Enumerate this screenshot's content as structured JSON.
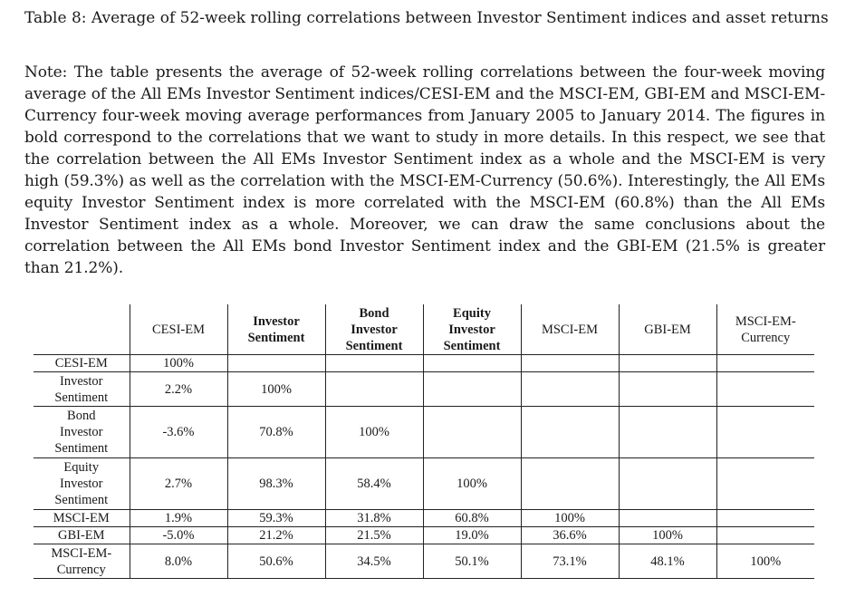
{
  "caption": "Table 8: Average of 52-week rolling correlations between Investor Sentiment indices and asset returns",
  "note": "Note: The table presents the average of 52-week rolling correlations between the four-week moving average of the All EMs Investor Sentiment indices/CESI-EM and the MSCI-EM, GBI-EM and MSCI-EM-Currency four-week moving average performances from January 2005 to January 2014. The figures in bold correspond to the correlations that we want to study in more details. In this respect, we see that the correlation between the All EMs Investor Sentiment index as a whole and the MSCI-EM is very high (59.3%) as well as the correlation with the MSCI-EM-Currency (50.6%). Interestingly, the All EMs equity Investor Sentiment index is more correlated with the MSCI-EM (60.8%) than the All EMs Investor Sentiment index as a whole. Moreover, we can draw the same conclusions about the correlation between the All EMs bond Investor Sentiment index and the GBI-EM (21.5% is greater than 21.2%).",
  "table": {
    "headers": [
      {
        "line1": "CESI-EM",
        "line2": "",
        "line3": ""
      },
      {
        "line1": "Investor",
        "line2": "Sentiment",
        "line3": ""
      },
      {
        "line1": "Bond",
        "line2": "Investor",
        "line3": "Sentiment"
      },
      {
        "line1": "Equity",
        "line2": "Investor",
        "line3": "Sentiment"
      },
      {
        "line1": "MSCI-EM",
        "line2": "",
        "line3": ""
      },
      {
        "line1": "GBI-EM",
        "line2": "",
        "line3": ""
      },
      {
        "line1": "MSCI-EM-",
        "line2": "Currency",
        "line3": ""
      }
    ],
    "rows": [
      {
        "label1": "CESI-EM",
        "label2": "",
        "label3": "",
        "cells": [
          "100%",
          "",
          "",
          "",
          "",
          "",
          ""
        ]
      },
      {
        "label1": "Investor",
        "label2": "Sentiment",
        "label3": "",
        "cells": [
          "2.2%",
          "100%",
          "",
          "",
          "",
          "",
          ""
        ]
      },
      {
        "label1": "Bond",
        "label2": "Investor",
        "label3": "Sentiment",
        "cells": [
          "-3.6%",
          "70.8%",
          "100%",
          "",
          "",
          "",
          ""
        ]
      },
      {
        "label1": "Equity",
        "label2": "Investor",
        "label3": "Sentiment",
        "cells": [
          "2.7%",
          "98.3%",
          "58.4%",
          "100%",
          "",
          "",
          ""
        ]
      },
      {
        "label1": "MSCI-EM",
        "label2": "",
        "label3": "",
        "cells": [
          "1.9%",
          "59.3%",
          "31.8%",
          "60.8%",
          "100%",
          "",
          ""
        ]
      },
      {
        "label1": "GBI-EM",
        "label2": "",
        "label3": "",
        "cells": [
          "-5.0%",
          "21.2%",
          "21.5%",
          "19.0%",
          "36.6%",
          "100%",
          ""
        ]
      },
      {
        "label1": "MSCI-EM-",
        "label2": "Currency",
        "label3": "",
        "cells": [
          "8.0%",
          "50.6%",
          "34.5%",
          "50.1%",
          "73.1%",
          "48.1%",
          "100%"
        ]
      }
    ]
  }
}
